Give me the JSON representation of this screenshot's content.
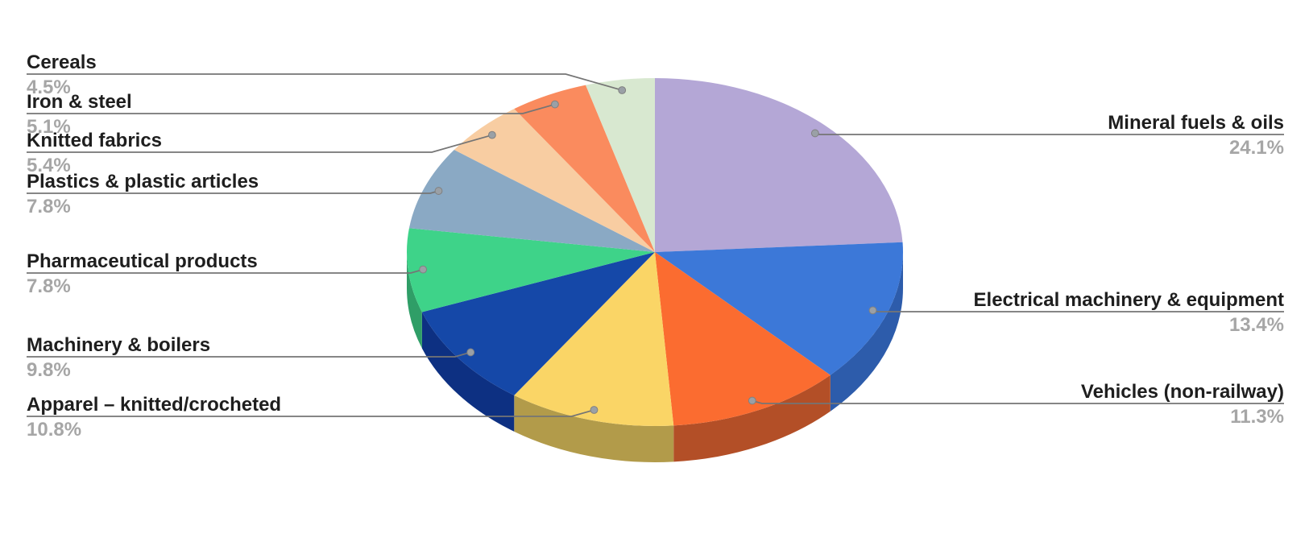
{
  "chart_data": {
    "type": "pie",
    "effect": "3d",
    "title": "",
    "start_angle_deg": 0,
    "direction": "clockwise",
    "unit": "%",
    "legend_position": "callout-labels",
    "slices": [
      {
        "label": "Mineral fuels & oils",
        "value": 24.1,
        "display": "24.1%",
        "color": "#b4a7d6",
        "side_color": "#8d82ad"
      },
      {
        "label": "Electrical machinery & equipment",
        "value": 13.4,
        "display": "13.4%",
        "color": "#3c78d8",
        "side_color": "#2d5cab"
      },
      {
        "label": "Vehicles (non-railway)",
        "value": 11.3,
        "display": "11.3%",
        "color": "#fb6c30",
        "side_color": "#b34f27"
      },
      {
        "label": "Apparel – knitted/crocheted",
        "value": 10.8,
        "display": "10.8%",
        "color": "#fad566",
        "side_color": "#b29b4a"
      },
      {
        "label": "Machinery & boilers",
        "value": 9.8,
        "display": "9.8%",
        "color": "#1548a8",
        "side_color": "#0d3082"
      },
      {
        "label": "Pharmaceutical products",
        "value": 7.8,
        "display": "7.8%",
        "color": "#3ed389",
        "side_color": "#2f9e67"
      },
      {
        "label": "Plastics & plastic articles",
        "value": 7.8,
        "display": "7.8%",
        "color": "#8aa9c4",
        "side_color": "#67839c"
      },
      {
        "label": "Knitted fabrics",
        "value": 5.4,
        "display": "5.4%",
        "color": "#f8cda2",
        "side_color": "#bd9a77"
      },
      {
        "label": "Iron & steel",
        "value": 5.1,
        "display": "5.1%",
        "color": "#fa8b5e",
        "side_color": "#bb6844"
      },
      {
        "label": "Cereals",
        "value": 4.5,
        "display": "4.5%",
        "color": "#d8e8d0",
        "side_color": "#a3b59a"
      }
    ],
    "colors": {
      "background": "#ffffff",
      "label_text": "#1e1e1e",
      "percent_text": "#a6a6a6",
      "leader_line": "#757575",
      "leader_dot": "#9aa0a6"
    }
  }
}
